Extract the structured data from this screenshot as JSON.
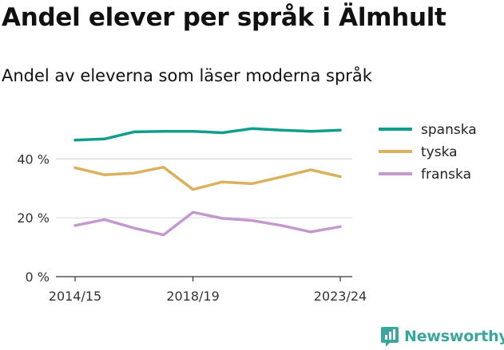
{
  "title": "Andel elever per språk i Älmhult",
  "subtitle": "Andel av eleverna som läser moderna språk",
  "brand": "Newsworthy",
  "chart_data": {
    "type": "line",
    "x": [
      "2014/15",
      "2015/16",
      "2016/17",
      "2017/18",
      "2018/19",
      "2019/20",
      "2020/21",
      "2021/22",
      "2022/23",
      "2023/24"
    ],
    "x_tick_labels": [
      "2014/15",
      "2018/19",
      "2023/24"
    ],
    "y_tick_labels": [
      "0 %",
      "20 %",
      "40 %"
    ],
    "ylim": [
      0,
      55
    ],
    "grid": true,
    "legend_position": "right",
    "series": [
      {
        "name": "spanska",
        "color": "#0f9e8e",
        "values": [
          46.4,
          46.8,
          49.2,
          49.4,
          49.4,
          48.9,
          50.3,
          49.8,
          49.4,
          49.8
        ]
      },
      {
        "name": "tyska",
        "color": "#d9b15f",
        "values": [
          37.0,
          34.6,
          35.2,
          37.2,
          29.6,
          32.2,
          31.6,
          33.9,
          36.3,
          34.0
        ]
      },
      {
        "name": "franska",
        "color": "#c39ace",
        "values": [
          17.4,
          19.4,
          16.5,
          14.2,
          21.9,
          19.8,
          19.1,
          17.4,
          15.2,
          17.0
        ]
      }
    ]
  }
}
